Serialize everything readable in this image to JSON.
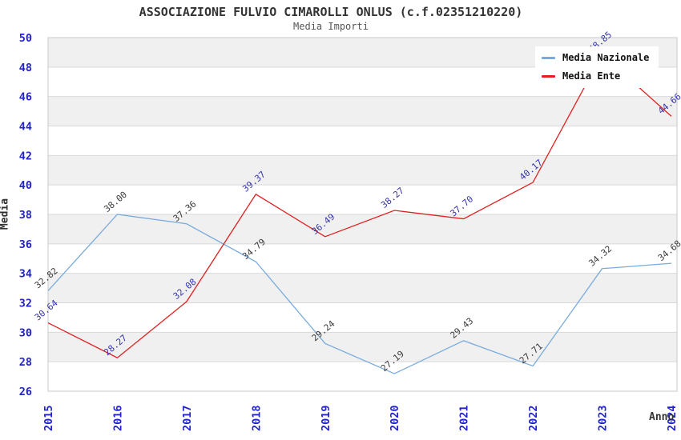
{
  "header": {
    "title": "ASSOCIAZIONE FULVIO CIMAROLLI ONLUS (c.f.02351210220)",
    "subtitle": "Media Importi"
  },
  "legend": {
    "items": [
      {
        "label": "Media Nazionale",
        "color": "#78abdd"
      },
      {
        "label": "Media Ente",
        "color": "#e02020"
      }
    ]
  },
  "axes": {
    "ylabel": "Media",
    "xlabel": "Anno"
  },
  "colors": {
    "tick_label": "#2323cc",
    "band": "#f0f0f0",
    "grid": "#d9d9d9",
    "border": "#c9c9c9",
    "title": "#333333",
    "subtitle": "#555555"
  },
  "chart_data": {
    "type": "line",
    "title": "ASSOCIAZIONE FULVIO CIMAROLLI ONLUS (c.f.02351210220)",
    "subtitle": "Media Importi",
    "xlabel": "Anno",
    "ylabel": "Media",
    "x": [
      2015,
      2016,
      2017,
      2018,
      2019,
      2020,
      2021,
      2022,
      2023,
      2024
    ],
    "series": [
      {
        "name": "Media Nazionale",
        "line_color": "#78abdd",
        "label_color": "#3a3a3a",
        "values": [
          32.82,
          38.0,
          37.36,
          34.79,
          29.24,
          27.19,
          29.43,
          27.71,
          34.32,
          34.68
        ]
      },
      {
        "name": "Media Ente",
        "line_color": "#e02020",
        "label_color": "#3434ad",
        "values": [
          30.64,
          28.27,
          32.08,
          39.37,
          36.49,
          38.27,
          37.7,
          40.17,
          48.85,
          44.66
        ]
      }
    ],
    "ylim": [
      26,
      50
    ],
    "ytick_step": 2,
    "grid": "horizontal gridlines with alternating gray/white bands every 2 units",
    "legend_position": "top-right inside plot",
    "point_labels": "each point labeled with its value, rotated ~40deg"
  }
}
